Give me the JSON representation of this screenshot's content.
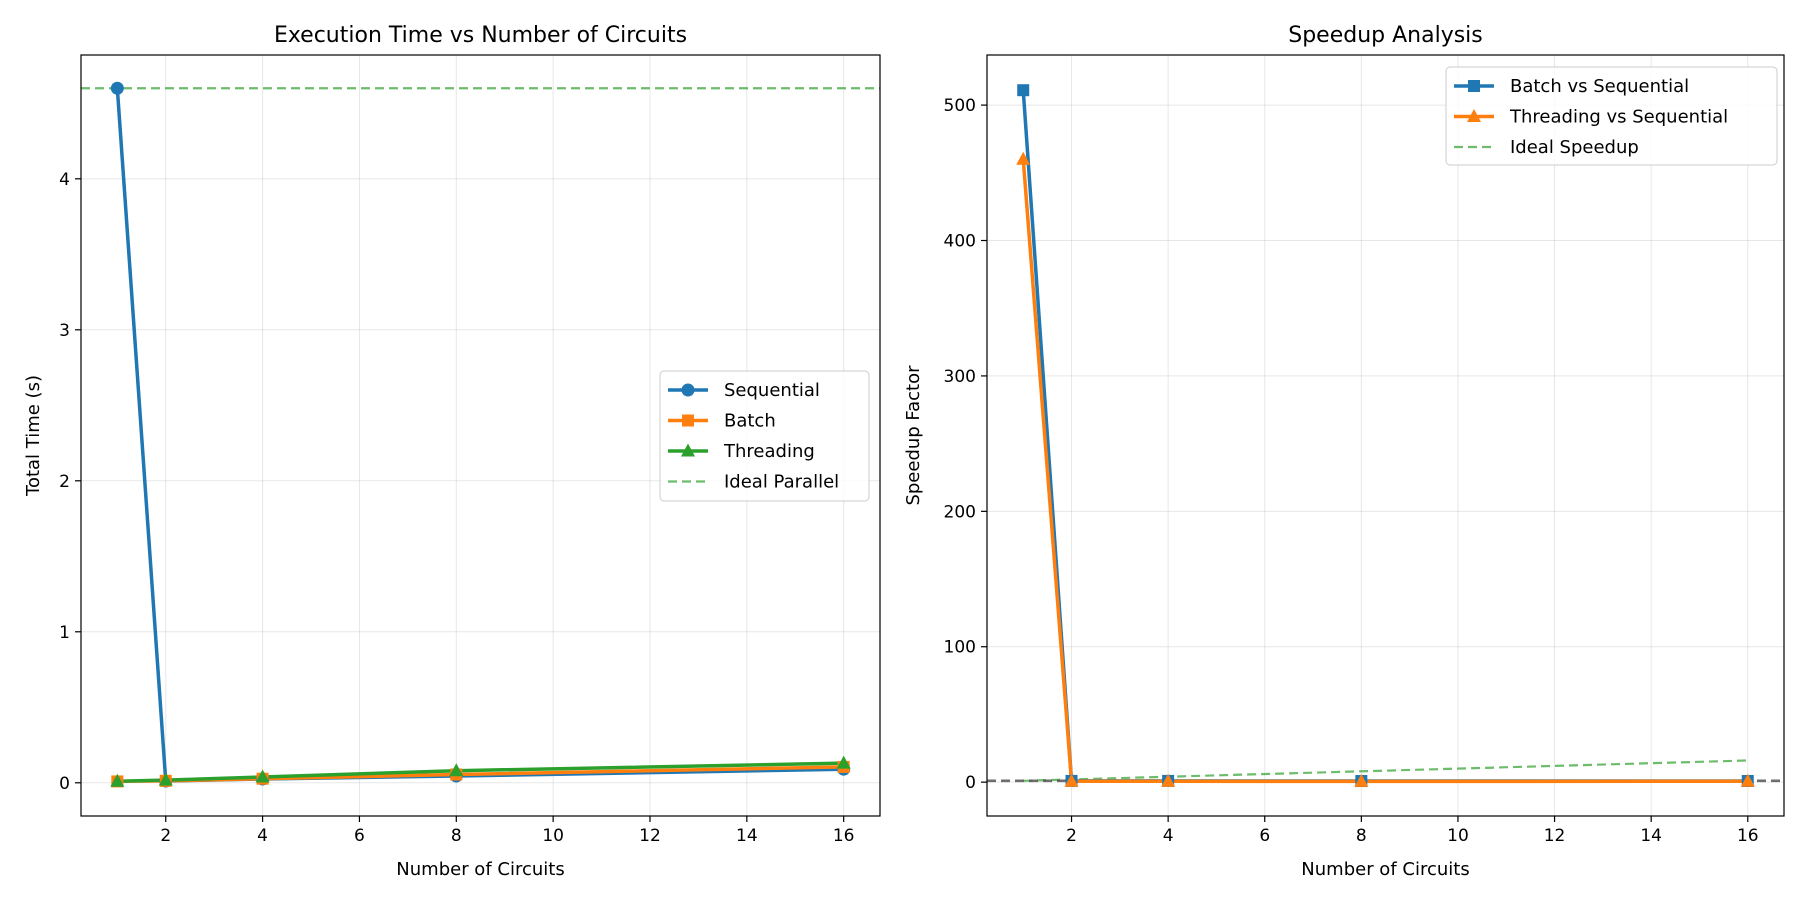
{
  "chart_data": [
    {
      "type": "line",
      "title": "Execution Time vs Number of Circuits",
      "xlabel": "Number of Circuits",
      "ylabel": "Total Time (s)",
      "xlim": [
        0.25,
        16.75
      ],
      "ylim": [
        -0.22,
        4.82
      ],
      "xticks": [
        2,
        4,
        6,
        8,
        10,
        12,
        14,
        16
      ],
      "yticks": [
        0,
        1,
        2,
        3,
        4
      ],
      "grid": true,
      "legend_position": "center-right",
      "series": [
        {
          "name": "Sequential",
          "color": "#1f77b4",
          "marker": "circle",
          "x": [
            1,
            2,
            4,
            8,
            16
          ],
          "y": [
            4.6,
            0.012,
            0.025,
            0.045,
            0.09
          ]
        },
        {
          "name": "Batch",
          "color": "#ff7f0e",
          "marker": "square",
          "x": [
            1,
            2,
            4,
            8,
            16
          ],
          "y": [
            0.009,
            0.013,
            0.027,
            0.055,
            0.105
          ]
        },
        {
          "name": "Threading",
          "color": "#2ca02c",
          "marker": "triangle",
          "x": [
            1,
            2,
            4,
            8,
            16
          ],
          "y": [
            0.01,
            0.018,
            0.038,
            0.08,
            0.13
          ]
        }
      ],
      "reference_lines": [
        {
          "name": "Ideal Parallel",
          "color": "#2ca02c",
          "style": "dashed",
          "orientation": "horizontal",
          "y": 4.6
        }
      ]
    },
    {
      "type": "line",
      "title": "Speedup Analysis",
      "xlabel": "Number of Circuits",
      "ylabel": "Speedup Factor",
      "xlim": [
        0.25,
        16.75
      ],
      "ylim": [
        -25,
        537
      ],
      "xticks": [
        2,
        4,
        6,
        8,
        10,
        12,
        14,
        16
      ],
      "yticks": [
        0,
        100,
        200,
        300,
        400,
        500
      ],
      "grid": true,
      "legend_position": "upper-right",
      "series": [
        {
          "name": "Batch vs Sequential",
          "color": "#1f77b4",
          "marker": "square",
          "x": [
            1,
            2,
            4,
            8,
            16
          ],
          "y": [
            511,
            0.92,
            0.93,
            0.82,
            0.86
          ]
        },
        {
          "name": "Threading vs Sequential",
          "color": "#ff7f0e",
          "marker": "triangle",
          "x": [
            1,
            2,
            4,
            8,
            16
          ],
          "y": [
            460,
            0.67,
            0.66,
            0.56,
            0.69
          ]
        }
      ],
      "reference_lines": [
        {
          "name": "Ideal Speedup",
          "color": "#2ca02c",
          "style": "dashed",
          "orientation": "diagonal",
          "x": [
            1,
            16
          ],
          "y": [
            1,
            16
          ]
        },
        {
          "name": "",
          "color": "#555555",
          "style": "dashed",
          "orientation": "horizontal",
          "y": 1
        }
      ]
    }
  ]
}
